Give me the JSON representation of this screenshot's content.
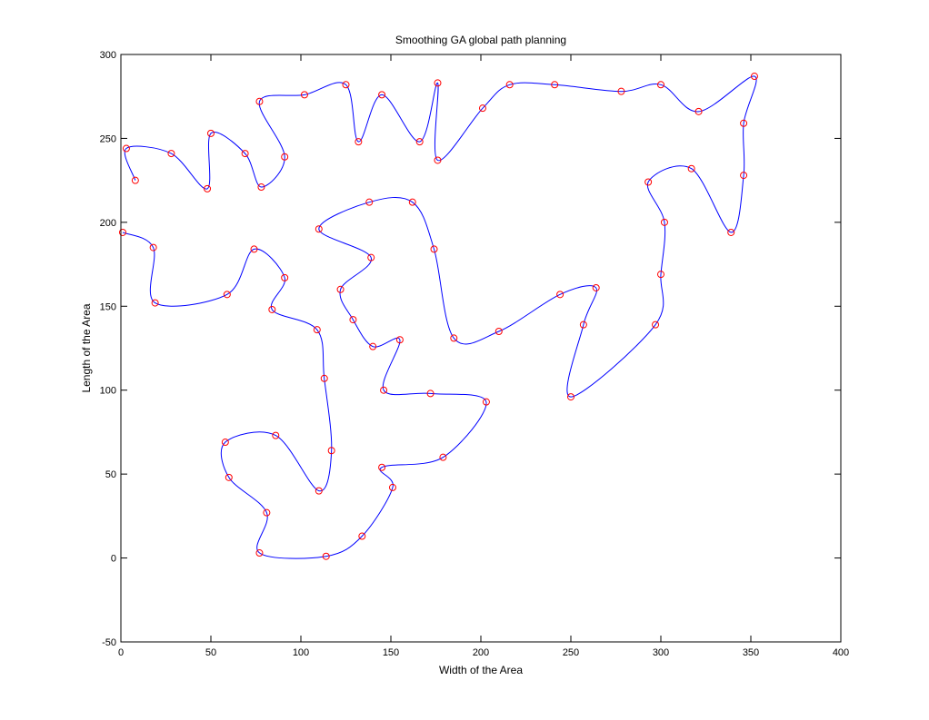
{
  "chart_data": {
    "type": "line",
    "title": "Smoothing GA global path planning",
    "xlabel": "Width of the Area",
    "ylabel": "Length of the Area",
    "xlim": [
      0,
      400
    ],
    "ylim": [
      -50,
      300
    ],
    "xticks": [
      0,
      50,
      100,
      150,
      200,
      250,
      300,
      350,
      400
    ],
    "yticks": [
      -50,
      0,
      50,
      100,
      150,
      200,
      250,
      300
    ],
    "grid": false,
    "legend": "none",
    "line_color": "#0000ff",
    "marker_color": "#ff0000",
    "marker": "circle",
    "points": [
      [
        8,
        225
      ],
      [
        3,
        244
      ],
      [
        28,
        241
      ],
      [
        48,
        220
      ],
      [
        50,
        253
      ],
      [
        69,
        241
      ],
      [
        78,
        221
      ],
      [
        91,
        239
      ],
      [
        77,
        272
      ],
      [
        102,
        276
      ],
      [
        125,
        282
      ],
      [
        132,
        248
      ],
      [
        145,
        276
      ],
      [
        166,
        248
      ],
      [
        176,
        283
      ],
      [
        176,
        237
      ],
      [
        201,
        268
      ],
      [
        216,
        282
      ],
      [
        241,
        282
      ],
      [
        278,
        278
      ],
      [
        300,
        282
      ],
      [
        321,
        266
      ],
      [
        352,
        287
      ],
      [
        346,
        259
      ],
      [
        346,
        228
      ],
      [
        339,
        194
      ],
      [
        317,
        232
      ],
      [
        293,
        224
      ],
      [
        302,
        200
      ],
      [
        300,
        169
      ],
      [
        297,
        139
      ],
      [
        250,
        96
      ],
      [
        257,
        139
      ],
      [
        264,
        161
      ],
      [
        244,
        157
      ],
      [
        210,
        135
      ],
      [
        185,
        131
      ],
      [
        174,
        184
      ],
      [
        162,
        212
      ],
      [
        138,
        212
      ],
      [
        110,
        196
      ],
      [
        139,
        179
      ],
      [
        122,
        160
      ],
      [
        129,
        142
      ],
      [
        140,
        126
      ],
      [
        155,
        130
      ],
      [
        146,
        100
      ],
      [
        172,
        98
      ],
      [
        203,
        93
      ],
      [
        179,
        60
      ],
      [
        145,
        54
      ],
      [
        151,
        42
      ],
      [
        134,
        13
      ],
      [
        114,
        1
      ],
      [
        77,
        3
      ],
      [
        81,
        27
      ],
      [
        60,
        48
      ],
      [
        58,
        69
      ],
      [
        86,
        73
      ],
      [
        110,
        40
      ],
      [
        117,
        64
      ],
      [
        113,
        107
      ],
      [
        109,
        136
      ],
      [
        84,
        148
      ],
      [
        91,
        167
      ],
      [
        74,
        184
      ],
      [
        59,
        157
      ],
      [
        19,
        152
      ],
      [
        18,
        185
      ],
      [
        1,
        194
      ]
    ]
  }
}
